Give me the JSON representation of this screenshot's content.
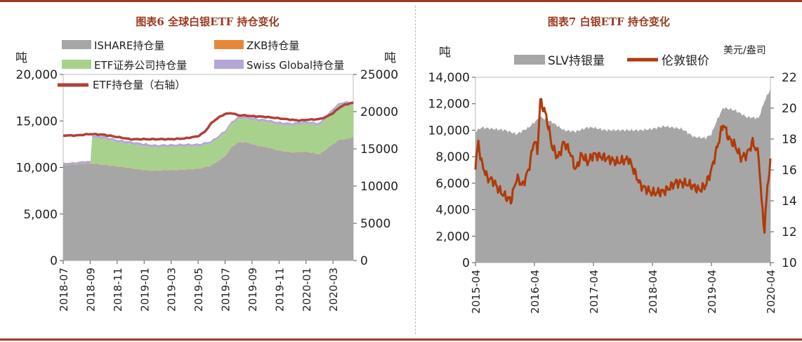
{
  "left_title": "图表6  全球白银ETF 持仓变化",
  "right_title": "图表7  白银ETF 持仓变化",
  "colors": {
    "brand": "#9b3a1e",
    "ishare": "#a6a6a6",
    "zkb": "#e5873a",
    "etf_sec": "#a9d18e",
    "swiss": "#b4a7d6",
    "etf_line": "#b0403a",
    "slv": "#a6a6a6",
    "london": "#b03a0a"
  },
  "chart_data": [
    {
      "type": "area",
      "title": "图表6  全球白银ETF 持仓变化",
      "y_left_label": "吨",
      "y_right_label": "吨",
      "ylim_left": [
        0,
        20000
      ],
      "ylim_right": [
        0,
        25000
      ],
      "yticks_left": [
        "0",
        "5,000",
        "10,000",
        "15,000",
        "20,000"
      ],
      "yticks_right": [
        "0",
        "5000",
        "10000",
        "15000",
        "20000",
        "25000"
      ],
      "xticks": [
        "2018-07",
        "2018-09",
        "2018-11",
        "2019-01",
        "2019-03",
        "2019-05",
        "2019-07",
        "2019-09",
        "2019-11",
        "2020-01",
        "2020-03"
      ],
      "legend": [
        "ISHARE持仓量",
        "ZKB持仓量",
        "ETF证券公司持仓量",
        "Swiss Global持仓量",
        "ETF持仓量（右轴）"
      ],
      "series": [
        {
          "name": "ISHARE持仓量",
          "axis": "left",
          "x": [
            0,
            1,
            1.5,
            2,
            3,
            4,
            5,
            6,
            6.5,
            7,
            7.5,
            8,
            9,
            10,
            10.5,
            11,
            12,
            12.5,
            13,
            13.5,
            14,
            14.5,
            15,
            15.5,
            16,
            16.5,
            17,
            18,
            19,
            20,
            20.5,
            21,
            21.5
          ],
          "values": [
            10200,
            10300,
            10400,
            10400,
            10300,
            10100,
            9900,
            9700,
            9650,
            9650,
            9700,
            9700,
            9750,
            9850,
            10000,
            10200,
            11200,
            12200,
            12700,
            12700,
            12500,
            12300,
            12200,
            12000,
            11800,
            11700,
            11600,
            11700,
            11400,
            12500,
            13000,
            13000,
            13300
          ]
        },
        {
          "name": "ZKB持仓量",
          "axis": "left",
          "x": [
            0,
            21.5
          ],
          "values": [
            30,
            30
          ]
        },
        {
          "name": "ETF证券公司持仓量",
          "axis": "left",
          "x": [
            2,
            2.1,
            3,
            4,
            5,
            6,
            7,
            8,
            9,
            10,
            11,
            12,
            12.5,
            13,
            14,
            15,
            16,
            17,
            18,
            19,
            19.5,
            20,
            21,
            21.5
          ],
          "values": [
            0,
            2800,
            2800,
            2600,
            2600,
            2600,
            2500,
            2500,
            2500,
            2400,
            2400,
            2500,
            2500,
            2500,
            2600,
            2700,
            2800,
            2900,
            3000,
            3100,
            3300,
            3600,
            3800,
            3500
          ]
        },
        {
          "name": "Swiss Global持仓量",
          "axis": "left",
          "x": [
            0,
            21.5
          ],
          "values": [
            250,
            250
          ]
        },
        {
          "name": "ETF持仓量（右轴）",
          "axis": "right",
          "x": [
            0,
            1,
            2,
            3,
            4,
            5,
            6,
            7,
            8,
            9,
            10,
            10.5,
            11,
            11.5,
            12,
            12.5,
            13,
            13.5,
            14,
            15,
            16,
            17,
            17.5,
            18,
            19,
            19.5,
            20,
            20.5,
            21,
            21.5
          ],
          "values": [
            16800,
            16800,
            17000,
            16900,
            16600,
            16300,
            16300,
            16300,
            16300,
            16400,
            16700,
            17300,
            18500,
            19200,
            19700,
            19800,
            19500,
            19500,
            19400,
            19300,
            19100,
            18900,
            18800,
            18900,
            19000,
            19300,
            19800,
            20600,
            21000,
            21200
          ]
        }
      ]
    },
    {
      "type": "area",
      "title": "图表7  白银ETF 持仓变化",
      "y_left_label": "吨",
      "y_right_label": "美元/盎司",
      "ylim_left": [
        0,
        14000
      ],
      "ylim_right": [
        10,
        22
      ],
      "yticks_left": [
        "0",
        "2,000",
        "4,000",
        "6,000",
        "8,000",
        "10,000",
        "12,000",
        "14,000"
      ],
      "yticks_right": [
        "10",
        "12",
        "14",
        "16",
        "18",
        "20",
        "22"
      ],
      "xticks": [
        "2015-04",
        "2016-04",
        "2017-04",
        "2018-04",
        "2019-04",
        "2020-04"
      ],
      "legend": [
        "SLV持银量",
        "伦敦银价"
      ],
      "series": [
        {
          "name": "SLV持银量",
          "axis": "left",
          "x": [
            0,
            0.1,
            0.3,
            0.5,
            0.7,
            0.9,
            1.0,
            1.1,
            1.3,
            1.5,
            1.7,
            1.9,
            2.0,
            2.2,
            2.5,
            2.8,
            3.0,
            3.2,
            3.5,
            3.7,
            3.9,
            4.0,
            4.1,
            4.2,
            4.4,
            4.6,
            4.8,
            4.9,
            5.0
          ],
          "values": [
            9900,
            10200,
            10100,
            10000,
            9700,
            10200,
            10600,
            11000,
            10600,
            10000,
            9900,
            10200,
            10200,
            10000,
            10000,
            10000,
            10100,
            10300,
            10100,
            9500,
            9400,
            9700,
            10800,
            11700,
            11500,
            11000,
            10900,
            12200,
            13100
          ]
        },
        {
          "name": "伦敦银价",
          "axis": "right",
          "x": [
            0,
            0.05,
            0.1,
            0.2,
            0.3,
            0.4,
            0.5,
            0.6,
            0.7,
            0.8,
            0.9,
            1.0,
            1.05,
            1.1,
            1.2,
            1.3,
            1.4,
            1.5,
            1.6,
            1.7,
            1.8,
            1.9,
            2.0,
            2.2,
            2.4,
            2.6,
            2.8,
            3.0,
            3.2,
            3.4,
            3.6,
            3.8,
            3.9,
            4.0,
            4.1,
            4.2,
            4.3,
            4.4,
            4.5,
            4.6,
            4.7,
            4.8,
            4.85,
            4.9,
            4.95,
            5.0
          ],
          "values": [
            16.3,
            17.8,
            16.5,
            15.5,
            15.3,
            14.7,
            14.3,
            14.0,
            15.5,
            15.0,
            16.0,
            18.0,
            17.2,
            20.5,
            19.5,
            17.5,
            16.8,
            17.8,
            17.2,
            16.0,
            17.0,
            16.5,
            17.0,
            16.8,
            16.5,
            16.7,
            15.0,
            14.5,
            14.6,
            15.2,
            15.1,
            14.7,
            15.0,
            16.0,
            17.5,
            19.0,
            18.0,
            17.6,
            16.8,
            17.0,
            17.8,
            17.0,
            14.0,
            12.1,
            15.0,
            16.4
          ]
        }
      ]
    }
  ]
}
